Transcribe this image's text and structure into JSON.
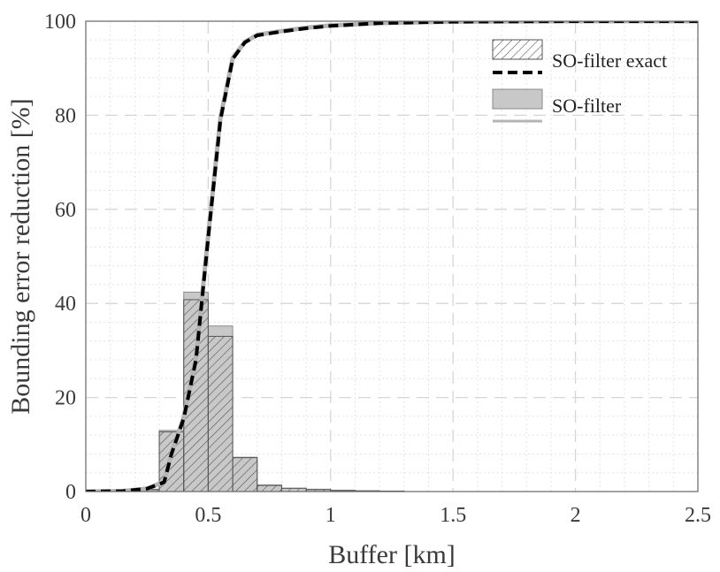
{
  "chart_data": {
    "type": "bar",
    "title": "",
    "xlabel": "Buffer [km]",
    "ylabel": "Bounding error reduction [%]",
    "xlim": [
      0,
      2.5
    ],
    "ylim": [
      0,
      100
    ],
    "x_ticks": [
      "0",
      "0.5",
      "1",
      "1.5",
      "2",
      "2.5"
    ],
    "y_ticks": [
      "0",
      "20",
      "40",
      "60",
      "80",
      "100"
    ],
    "grid": true,
    "minor_grid": true,
    "legend_placement": "top-right",
    "bin_width": 0.1,
    "bin_starts": [
      0.0,
      0.1,
      0.2,
      0.3,
      0.4,
      0.5,
      0.6,
      0.7,
      0.8,
      0.9,
      1.0,
      1.1,
      1.2
    ],
    "series": [
      {
        "name": "SO-filter exact",
        "kind": "histogram",
        "style": "hatched",
        "values": [
          0.2,
          0.1,
          0.4,
          12.7,
          40.8,
          33.0,
          7.2,
          1.3,
          0.7,
          0.4,
          0.2,
          0.1,
          0.1
        ]
      },
      {
        "name": "SO-filter exact",
        "kind": "line",
        "style": "dashed",
        "color": "#000000",
        "x": [
          0,
          0.15,
          0.25,
          0.32,
          0.35,
          0.4,
          0.45,
          0.5,
          0.55,
          0.6,
          0.65,
          0.7,
          0.8,
          0.9,
          1.0,
          1.2,
          1.5,
          2.0,
          2.5
        ],
        "y": [
          0.0,
          0.1,
          0.6,
          2.0,
          8.0,
          15.5,
          28.0,
          54.0,
          79.0,
          92.0,
          95.5,
          97.0,
          97.8,
          98.5,
          99.0,
          99.6,
          99.9,
          100.0,
          100.0
        ]
      },
      {
        "name": "SO-filter",
        "kind": "histogram",
        "style": "filled",
        "color": "#c8c8c8",
        "values": [
          0.3,
          0.1,
          0.5,
          13.0,
          42.4,
          35.2,
          7.3,
          1.4,
          0.7,
          0.5,
          0.3,
          0.2,
          0.1
        ]
      },
      {
        "name": "SO-filter",
        "kind": "line",
        "style": "solid",
        "color": "#b4b4b4",
        "x": [
          0,
          0.15,
          0.25,
          0.32,
          0.35,
          0.4,
          0.45,
          0.5,
          0.55,
          0.6,
          0.65,
          0.7,
          0.8,
          0.9,
          1.0,
          1.2,
          1.5,
          2.0,
          2.5
        ],
        "y": [
          0.0,
          0.1,
          0.6,
          2.1,
          8.2,
          15.8,
          28.5,
          54.5,
          79.5,
          92.2,
          95.6,
          97.1,
          97.9,
          98.6,
          99.1,
          99.6,
          99.9,
          100.0,
          100.0
        ]
      }
    ]
  }
}
